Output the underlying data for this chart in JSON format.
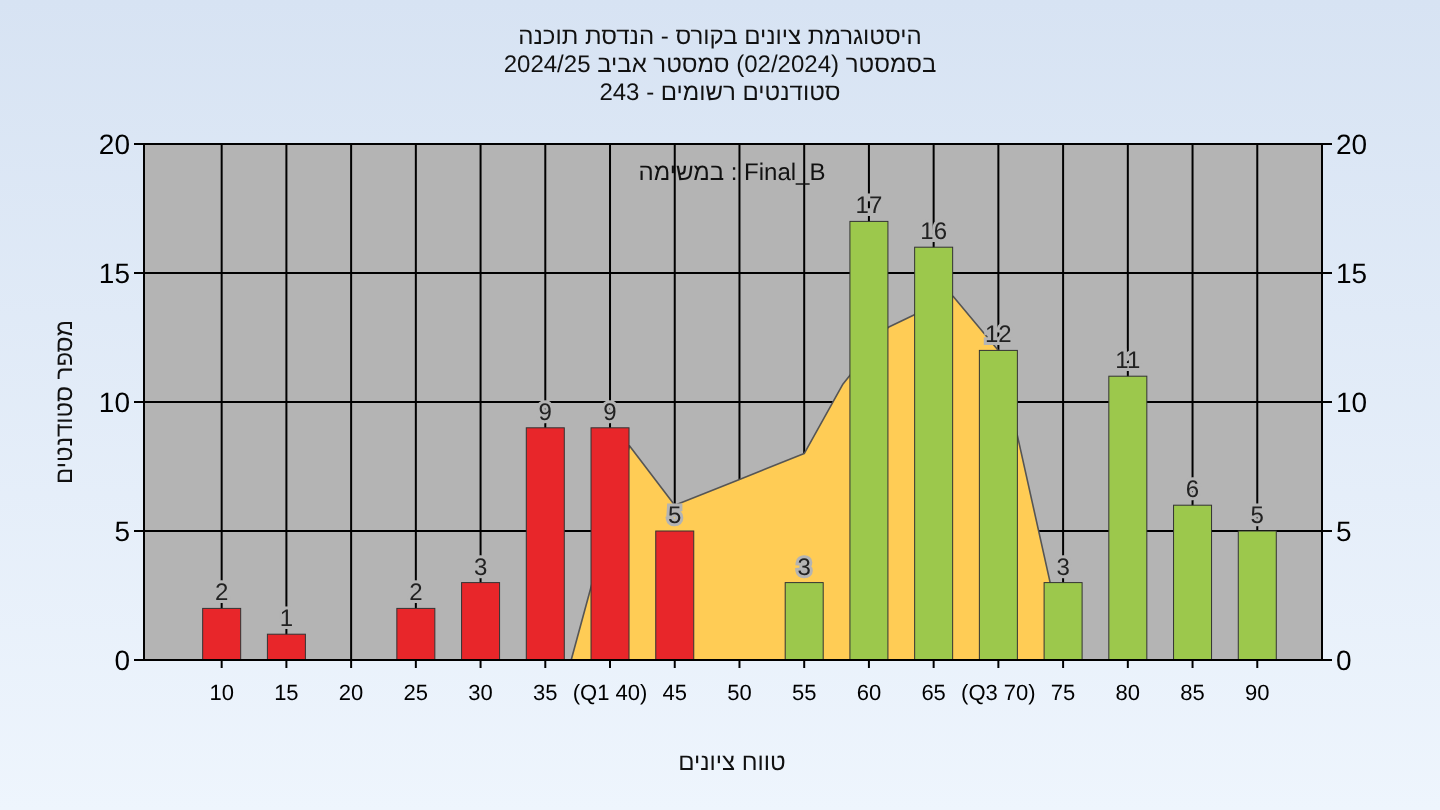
{
  "chart_data": {
    "type": "bar",
    "title": "היסטוגרמת ציונים בקורס - הנדסת תוכנה",
    "subtitle": "בסמסטר (02/2024) סמסטר אביב 2024/25\nסטודנטים רשומים - 243",
    "xlabel": "טווח ציונים",
    "ylabel": "מספר סטודנטים",
    "annotations": [
      "Final_B : במשימה"
    ],
    "x": [
      10,
      15,
      20,
      25,
      30,
      35,
      40,
      45,
      50,
      55,
      60,
      65,
      70,
      75,
      80,
      85,
      90
    ],
    "series": [
      {
        "type": "area",
        "color": "#ffcc55",
        "x": [
          37,
          41.5,
          45,
          50,
          52,
          55,
          58,
          61.5,
          66.5,
          70,
          74,
          75.5
        ],
        "values": [
          0,
          8.3,
          6,
          7,
          7.4,
          8,
          10.7,
          12.9,
          14.1,
          12,
          3,
          0
        ]
      },
      {
        "colors": [
          "#e8262a",
          "#e8262a",
          "#e8262a",
          "#e8262a",
          "#e8262a",
          "#e8262a",
          "#e8262a",
          "#e8262a",
          "#e8262a",
          "#9cc84c",
          "#9cc84c",
          "#9cc84c",
          "#9cc84c",
          "#9cc84c",
          "#9cc84c",
          "#9cc84c",
          "#9cc84c"
        ],
        "values": [
          2,
          1,
          0,
          2,
          3,
          9,
          9,
          5,
          0,
          3,
          17,
          16,
          12,
          3,
          11,
          6,
          5
        ],
        "value_labels": [
          "2",
          "1",
          null,
          "2",
          "3",
          "9",
          "9",
          "5",
          null,
          "3",
          "17",
          "16",
          "12",
          "3",
          "11",
          "6",
          "5"
        ]
      }
    ],
    "grid": true,
    "xlim": [
      4,
      95
    ],
    "xticks": [
      10,
      15,
      20,
      25,
      30,
      35,
      {
        "value": 40,
        "label": "(Q1 40)"
      },
      45,
      50,
      55,
      60,
      65,
      {
        "value": 70,
        "label": "(Q3 70)"
      },
      75,
      80,
      85,
      90
    ],
    "ylim": [
      0,
      20
    ],
    "yticks": [
      0,
      5,
      10,
      15,
      20
    ],
    "y2lim": [
      0,
      20
    ],
    "y2ticks": [
      0,
      5,
      10,
      15,
      20
    ]
  }
}
